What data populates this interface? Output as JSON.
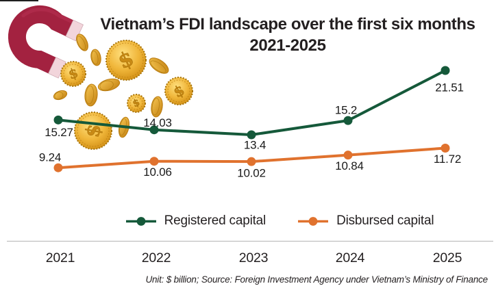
{
  "header": {
    "title": "Vietnam's FDI landscape over the first six months 2021-2025",
    "title_line1": "Vietnam’s FDI landscape over the first six months",
    "title_line2": "2021-2025"
  },
  "chart_data": {
    "type": "line",
    "title": "Vietnam's FDI landscape over the first six months 2021-2025",
    "categories": [
      "2021",
      "2022",
      "2023",
      "2024",
      "2025"
    ],
    "series": [
      {
        "name": "Registered capital",
        "color": "#15593a",
        "values": [
          15.27,
          14.03,
          13.4,
          15.2,
          21.51
        ],
        "labels": [
          "15.27",
          "14.03",
          "13.4",
          "15.2",
          "21.51"
        ]
      },
      {
        "name": "Disbursed capital",
        "color": "#e0722e",
        "values": [
          9.24,
          10.06,
          10.02,
          10.84,
          11.72
        ],
        "labels": [
          "9.24",
          "10.06",
          "10.02",
          "10.84",
          "11.72"
        ]
      }
    ],
    "xlabel": "",
    "ylabel": "",
    "unit": "$ billion",
    "grid": false,
    "legend_position": "bottom-center",
    "value_labels_shown": true
  },
  "footer": {
    "note": "Unit: $ billion; Source: Foreign Investment Agency under Vietnam’s Ministry of Finance"
  },
  "decor": {
    "magnet_icon": {
      "body_color": "#a32240",
      "tip_color": "#f2d5db"
    },
    "coin_icon": {
      "fill": "#eba92e",
      "edge": "#b97a0e",
      "symbol": "$"
    }
  }
}
